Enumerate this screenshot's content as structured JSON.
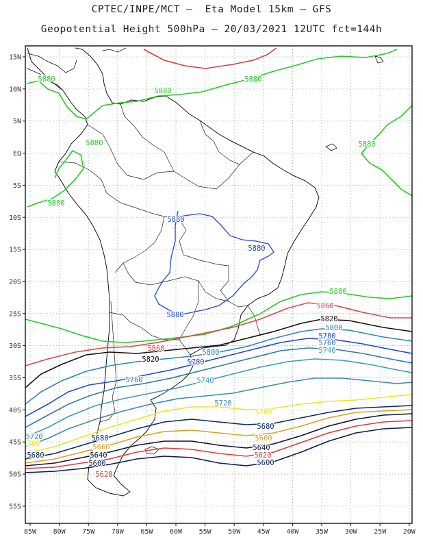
{
  "title_line1": "CPTEC/INPE/MCT –  Eta Model 15km – GFS",
  "title_line2": "Geopotential Height 500hPa – 20/03/2021 12UTC fct=144h",
  "lat_labels": [
    "15N",
    "10N",
    "5N",
    "EQ",
    "5S",
    "10S",
    "15S",
    "20S",
    "25S",
    "30S",
    "35S",
    "40S",
    "45S",
    "50S",
    "55S"
  ],
  "lon_labels": [
    "85W",
    "80W",
    "75W",
    "70W",
    "65W",
    "60W",
    "55W",
    "50W",
    "45W",
    "40W",
    "35W",
    "30W",
    "25W",
    "20W"
  ],
  "colors": {
    "c5900": "#e03a3a",
    "c5880": "#22cc22",
    "c5860": "#e04444",
    "c5820": "#111111",
    "c5800": "#2a86b8",
    "c5780": "#2244dd",
    "c5760": "#2a7ab0",
    "c5740": "#3a9abf",
    "c5720": "#3a8ab0",
    "c5700": "#e8e820",
    "c5680": "#0a2a6a",
    "c5660": "#e0a020",
    "c5640": "#111133",
    "c5620": "#e03a3a",
    "c5600": "#0a1a55",
    "c5880_land": "#2244dd",
    "coast": "#111111"
  },
  "contour_labels": [
    {
      "text": "5880",
      "color": "c5880"
    },
    {
      "text": "5880",
      "color": "c5880"
    },
    {
      "text": "5880",
      "color": "c5880"
    },
    {
      "text": "5880",
      "color": "c5880"
    },
    {
      "text": "5880",
      "color": "c5880"
    },
    {
      "text": "5880",
      "color": "c5880"
    },
    {
      "text": "5880",
      "color": "c5880"
    },
    {
      "text": "5880",
      "color": "c5880_land"
    },
    {
      "text": "5880",
      "color": "c5880_land"
    },
    {
      "text": "5880",
      "color": "c5880_land"
    },
    {
      "text": "5860",
      "color": "c5860"
    },
    {
      "text": "5860",
      "color": "c5860"
    },
    {
      "text": "5820",
      "color": "c5820"
    },
    {
      "text": "5820",
      "color": "c5820"
    },
    {
      "text": "5800",
      "color": "c5800"
    },
    {
      "text": "5800",
      "color": "c5800"
    },
    {
      "text": "5780",
      "color": "c5780"
    },
    {
      "text": "5780",
      "color": "c5780"
    },
    {
      "text": "5760",
      "color": "c5760"
    },
    {
      "text": "5760",
      "color": "c5760"
    },
    {
      "text": "5740",
      "color": "c5740"
    },
    {
      "text": "5740",
      "color": "c5740"
    },
    {
      "text": "5720",
      "color": "c5720"
    },
    {
      "text": "5720",
      "color": "c5720"
    },
    {
      "text": "5700",
      "color": "c5700"
    },
    {
      "text": "5700",
      "color": "c5700"
    },
    {
      "text": "5680",
      "color": "c5680"
    },
    {
      "text": "5680",
      "color": "c5680"
    },
    {
      "text": "5680",
      "color": "c5680"
    },
    {
      "text": "5660",
      "color": "c5660"
    },
    {
      "text": "5660",
      "color": "c5660"
    },
    {
      "text": "5640",
      "color": "c5640"
    },
    {
      "text": "5640",
      "color": "c5640"
    },
    {
      "text": "5620",
      "color": "c5620"
    },
    {
      "text": "5620",
      "color": "c5620"
    },
    {
      "text": "5600",
      "color": "c5600"
    },
    {
      "text": "5600",
      "color": "c5600"
    }
  ]
}
